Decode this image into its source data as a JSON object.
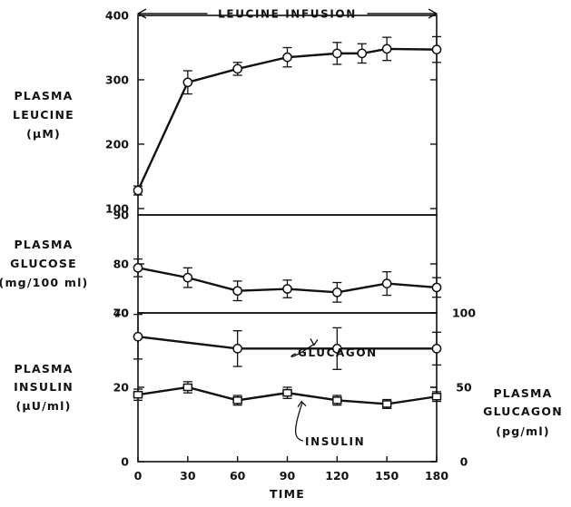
{
  "chart_data": [
    {
      "id": "leucine",
      "type": "line",
      "ylabel": [
        "PLASMA",
        "LEUCINE",
        "(μM)"
      ],
      "ylim": [
        90,
        400
      ],
      "yticks": [
        100,
        200,
        300,
        400
      ],
      "bottom_tick_label": "90",
      "x": [
        0,
        30,
        60,
        90,
        120,
        135,
        150,
        180
      ],
      "series": [
        {
          "values": [
            128,
            296,
            317,
            335,
            341,
            341,
            348,
            347
          ],
          "errors": [
            7,
            18,
            10,
            15,
            17,
            15,
            18,
            20
          ],
          "marker": "circle"
        }
      ],
      "annotation": {
        "text": "LEUCINE  INFUSION",
        "x_start": 0,
        "x_end": 180
      }
    },
    {
      "id": "glucose",
      "type": "line",
      "ylabel": [
        "PLASMA",
        "GLUCOSE",
        "(mg/100 ml)"
      ],
      "ylim": [
        70,
        90
      ],
      "yticks": [
        80
      ],
      "bottom_tick_label": "70",
      "x": [
        0,
        30,
        60,
        90,
        120,
        150,
        180
      ],
      "series": [
        {
          "values": [
            79.2,
            77.2,
            74.5,
            74.9,
            74.2,
            76.0,
            75.2
          ],
          "errors": [
            1.8,
            2.0,
            2.0,
            1.8,
            2.0,
            2.4,
            2.0
          ],
          "marker": "circle"
        }
      ]
    },
    {
      "id": "insulin-glucagon",
      "type": "line",
      "ylabel": [
        "PLASMA",
        "INSULIN",
        "(μU/ml)"
      ],
      "ylim": [
        0,
        40
      ],
      "yticks": [
        0,
        20,
        40
      ],
      "ylabel_right": [
        "PLASMA",
        "GLUCAGON",
        "(pg/ml)"
      ],
      "ylim_right": [
        0,
        100
      ],
      "yticks_right": [
        0,
        50,
        100
      ],
      "xlabel": "TIME",
      "xticks": [
        0,
        30,
        60,
        90,
        120,
        150,
        180
      ],
      "x": [
        0,
        30,
        60,
        90,
        120,
        150,
        180
      ],
      "series": [
        {
          "name": "GLUCAGON",
          "axis": "right",
          "x": [
            0,
            60,
            120,
            180
          ],
          "values": [
            84,
            76,
            76,
            76
          ],
          "errors": [
            15,
            12,
            14,
            11
          ],
          "marker": "circle"
        },
        {
          "name": "INSULIN",
          "axis": "left",
          "x": [
            0,
            30,
            60,
            90,
            120,
            150,
            180
          ],
          "values": [
            18,
            20,
            16.5,
            18.5,
            16.5,
            15.5,
            17.5
          ],
          "errors": [
            1.5,
            1.5,
            1.3,
            1.5,
            1.3,
            1.2,
            1.3
          ],
          "marker": "square"
        }
      ]
    }
  ]
}
